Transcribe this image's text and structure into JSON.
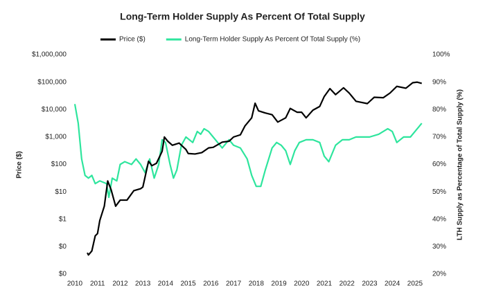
{
  "chart_data": {
    "type": "line",
    "title": "Long-Term Holder Supply As Percent Of Total Supply",
    "ylabel": "Price ($)",
    "y2label": "LTH Supply as Percentage of Total Supply (%)",
    "log_y": true,
    "grid": false,
    "legend": "top",
    "xlim": [
      2010,
      2025.4
    ],
    "xticks": [
      2010,
      2011,
      2012,
      2013,
      2014,
      2015,
      2016,
      2017,
      2018,
      2019,
      2020,
      2021,
      2022,
      2023,
      2024,
      2025
    ],
    "ylim": [
      0.01,
      1000000
    ],
    "yticks": [
      {
        "value": 0.01,
        "label": "$0"
      },
      {
        "value": 0.1,
        "label": "$0"
      },
      {
        "value": 1,
        "label": "$1"
      },
      {
        "value": 10,
        "label": "$10"
      },
      {
        "value": 100,
        "label": "$100"
      },
      {
        "value": 1000,
        "label": "$1,000"
      },
      {
        "value": 10000,
        "label": "$10,000"
      },
      {
        "value": 100000,
        "label": "$100,000"
      },
      {
        "value": 1000000,
        "label": "$1,000,000"
      }
    ],
    "y2lim": [
      20,
      100
    ],
    "y2ticks": [
      {
        "value": 20,
        "label": "20%"
      },
      {
        "value": 30,
        "label": "30%"
      },
      {
        "value": 40,
        "label": "40%"
      },
      {
        "value": 50,
        "label": "50%"
      },
      {
        "value": 60,
        "label": "60%"
      },
      {
        "value": 70,
        "label": "70%"
      },
      {
        "value": 80,
        "label": "80%"
      },
      {
        "value": 90,
        "label": "90%"
      },
      {
        "value": 100,
        "label": "100%"
      }
    ],
    "series": [
      {
        "name": "Price ($)",
        "color": "#000000",
        "x": [
          2010.55,
          2010.6,
          2010.75,
          2010.9,
          2011.0,
          2011.1,
          2011.3,
          2011.45,
          2011.6,
          2011.8,
          2012.0,
          2012.3,
          2012.6,
          2012.9,
          2013.0,
          2013.25,
          2013.4,
          2013.6,
          2013.85,
          2013.95,
          2014.1,
          2014.3,
          2014.6,
          2014.9,
          2015.0,
          2015.3,
          2015.6,
          2015.9,
          2016.1,
          2016.5,
          2016.8,
          2017.0,
          2017.3,
          2017.5,
          2017.8,
          2017.95,
          2018.1,
          2018.4,
          2018.7,
          2018.95,
          2019.3,
          2019.5,
          2019.8,
          2020.0,
          2020.2,
          2020.5,
          2020.8,
          2021.0,
          2021.25,
          2021.5,
          2021.85,
          2022.1,
          2022.4,
          2022.9,
          2023.2,
          2023.6,
          2023.9,
          2024.2,
          2024.6,
          2024.9,
          2025.1,
          2025.3
        ],
        "values": [
          0.06,
          0.05,
          0.07,
          0.25,
          0.3,
          0.9,
          3,
          25,
          12,
          3,
          5,
          5,
          11,
          13,
          15,
          130,
          90,
          110,
          300,
          1000,
          700,
          500,
          600,
          350,
          250,
          240,
          270,
          400,
          420,
          650,
          700,
          1000,
          1200,
          2500,
          5000,
          17000,
          9000,
          7500,
          6500,
          3500,
          5000,
          11000,
          8000,
          8000,
          5000,
          9500,
          13000,
          30000,
          58000,
          35000,
          62000,
          40000,
          20000,
          16500,
          28000,
          27000,
          40000,
          70000,
          60000,
          95000,
          100000,
          90000
        ]
      },
      {
        "name": "Long-Term Holder Supply As Percent Of Total Supply (%)",
        "color": "#2ee59d",
        "axis": "y2",
        "x": [
          2010.0,
          2010.15,
          2010.3,
          2010.45,
          2010.6,
          2010.75,
          2010.9,
          2011.1,
          2011.4,
          2011.5,
          2011.65,
          2011.85,
          2012.0,
          2012.2,
          2012.5,
          2012.7,
          2012.9,
          2013.1,
          2013.3,
          2013.5,
          2013.7,
          2013.85,
          2014.0,
          2014.2,
          2014.35,
          2014.5,
          2014.7,
          2014.9,
          2015.2,
          2015.4,
          2015.55,
          2015.7,
          2015.9,
          2016.1,
          2016.3,
          2016.5,
          2016.8,
          2017.0,
          2017.3,
          2017.6,
          2017.8,
          2018.0,
          2018.2,
          2018.4,
          2018.7,
          2018.9,
          2019.1,
          2019.3,
          2019.5,
          2019.7,
          2019.9,
          2020.2,
          2020.5,
          2020.8,
          2021.0,
          2021.2,
          2021.5,
          2021.8,
          2022.1,
          2022.4,
          2022.7,
          2023.0,
          2023.4,
          2023.8,
          2024.0,
          2024.2,
          2024.5,
          2024.8,
          2025.0,
          2025.3
        ],
        "values": [
          82,
          75,
          62,
          56,
          55,
          56,
          53,
          54,
          53,
          48,
          55,
          54,
          60,
          61,
          60,
          62,
          60,
          57,
          62,
          55,
          60,
          69,
          68,
          60,
          55,
          58,
          67,
          70,
          68,
          72,
          71,
          73,
          72,
          70,
          68,
          66,
          69,
          67,
          66,
          62,
          56,
          52,
          52,
          58,
          66,
          68,
          67,
          65,
          60,
          65,
          68,
          69,
          69,
          68,
          63,
          61,
          67,
          69,
          69,
          70,
          70,
          70,
          71,
          73,
          72,
          68,
          70,
          70,
          72,
          75
        ]
      }
    ]
  }
}
